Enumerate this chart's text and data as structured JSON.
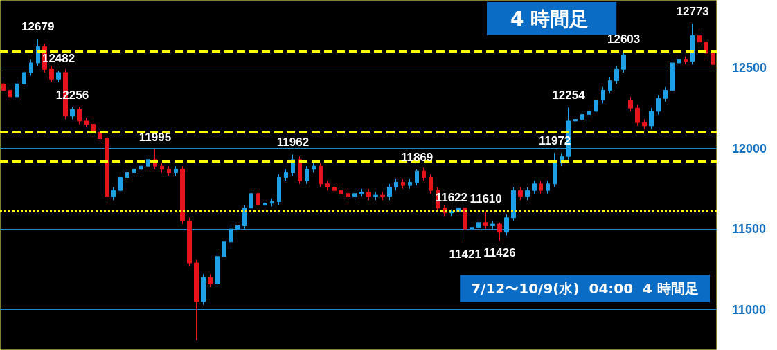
{
  "chart_data": {
    "type": "candlestick",
    "title": "4 時間足",
    "categories": [
      null,
      null,
      null,
      null,
      null,
      null,
      null,
      null,
      null,
      null,
      null,
      null,
      null,
      null,
      null,
      null,
      null,
      null,
      null,
      null,
      null,
      null,
      null,
      null,
      null,
      null,
      null,
      null,
      null,
      null,
      null,
      null,
      null,
      null,
      null,
      null,
      null,
      null,
      null,
      null,
      null,
      null,
      null,
      null,
      null,
      null,
      null,
      null,
      null,
      null,
      null,
      null,
      null,
      null,
      null,
      null,
      null,
      null,
      null,
      null,
      null,
      null,
      null,
      null,
      null,
      null,
      null,
      null,
      null,
      null,
      null,
      null,
      null,
      null,
      null,
      null,
      null,
      null,
      null,
      null,
      null,
      null,
      null,
      null,
      null,
      null,
      null,
      null,
      null,
      null,
      null,
      null,
      null,
      null,
      null,
      null,
      null,
      null,
      null,
      null,
      null,
      null,
      null,
      null
    ],
    "ohlc": [
      [
        12400,
        12420,
        12340,
        12360
      ],
      [
        12360,
        12380,
        12300,
        12320
      ],
      [
        12320,
        12420,
        12300,
        12400
      ],
      [
        12400,
        12490,
        12380,
        12470
      ],
      [
        12470,
        12550,
        12450,
        12530
      ],
      [
        12530,
        12679,
        12510,
        12630
      ],
      [
        12630,
        12650,
        12470,
        12490
      ],
      [
        12490,
        12510,
        12410,
        12430
      ],
      [
        12430,
        12482,
        12410,
        12470
      ],
      [
        12470,
        12490,
        12180,
        12200
      ],
      [
        12200,
        12256,
        12180,
        12240
      ],
      [
        12240,
        12260,
        12150,
        12170
      ],
      [
        12170,
        12190,
        12130,
        12150
      ],
      [
        12150,
        12170,
        12080,
        12100
      ],
      [
        12100,
        12120,
        12040,
        12060
      ],
      [
        12060,
        12080,
        11680,
        11700
      ],
      [
        11700,
        11760,
        11680,
        11740
      ],
      [
        11740,
        11840,
        11720,
        11820
      ],
      [
        11820,
        11870,
        11800,
        11850
      ],
      [
        11850,
        11890,
        11830,
        11870
      ],
      [
        11870,
        11910,
        11850,
        11890
      ],
      [
        11890,
        11950,
        11870,
        11930
      ],
      [
        11930,
        11995,
        11870,
        11890
      ],
      [
        11890,
        11910,
        11850,
        11870
      ],
      [
        11870,
        11890,
        11830,
        11850
      ],
      [
        11850,
        11890,
        11830,
        11870
      ],
      [
        11870,
        11890,
        11530,
        11550
      ],
      [
        11550,
        11570,
        11270,
        11290
      ],
      [
        11290,
        11310,
        10810,
        11050
      ],
      [
        11050,
        11220,
        11030,
        11200
      ],
      [
        11200,
        11220,
        11140,
        11160
      ],
      [
        11160,
        11350,
        11140,
        11330
      ],
      [
        11330,
        11440,
        11310,
        11420
      ],
      [
        11420,
        11520,
        11400,
        11500
      ],
      [
        11500,
        11540,
        11480,
        11520
      ],
      [
        11520,
        11650,
        11500,
        11630
      ],
      [
        11630,
        11740,
        11610,
        11720
      ],
      [
        11720,
        11740,
        11630,
        11650
      ],
      [
        11650,
        11670,
        11630,
        11660
      ],
      [
        11660,
        11690,
        11640,
        11670
      ],
      [
        11670,
        11840,
        11650,
        11820
      ],
      [
        11820,
        11870,
        11800,
        11850
      ],
      [
        11850,
        11962,
        11830,
        11930
      ],
      [
        11930,
        11950,
        11780,
        11800
      ],
      [
        11800,
        11890,
        11780,
        11870
      ],
      [
        11870,
        11910,
        11850,
        11890
      ],
      [
        11890,
        11910,
        11760,
        11780
      ],
      [
        11780,
        11800,
        11740,
        11760
      ],
      [
        11760,
        11780,
        11720,
        11740
      ],
      [
        11740,
        11760,
        11700,
        11720
      ],
      [
        11720,
        11740,
        11680,
        11700
      ],
      [
        11700,
        11740,
        11680,
        11720
      ],
      [
        11720,
        11750,
        11700,
        11730
      ],
      [
        11730,
        11750,
        11680,
        11700
      ],
      [
        11700,
        11730,
        11680,
        11710
      ],
      [
        11710,
        11730,
        11680,
        11700
      ],
      [
        11700,
        11780,
        11680,
        11760
      ],
      [
        11760,
        11810,
        11740,
        11790
      ],
      [
        11790,
        11810,
        11750,
        11770
      ],
      [
        11770,
        11810,
        11750,
        11790
      ],
      [
        11790,
        11869,
        11770,
        11860
      ],
      [
        11860,
        11880,
        11800,
        11820
      ],
      [
        11820,
        11840,
        11720,
        11740
      ],
      [
        11740,
        11760,
        11610,
        11630
      ],
      [
        11630,
        11650,
        11580,
        11600
      ],
      [
        11600,
        11622,
        11580,
        11610
      ],
      [
        11610,
        11650,
        11590,
        11630
      ],
      [
        11630,
        11650,
        11421,
        11500
      ],
      [
        11500,
        11530,
        11480,
        11510
      ],
      [
        11510,
        11560,
        11490,
        11540
      ],
      [
        11540,
        11610,
        11500,
        11520
      ],
      [
        11520,
        11550,
        11500,
        11530
      ],
      [
        11530,
        11540,
        11426,
        11480
      ],
      [
        11480,
        11590,
        11460,
        11570
      ],
      [
        11570,
        11760,
        11550,
        11740
      ],
      [
        11740,
        11760,
        11680,
        11700
      ],
      [
        11700,
        11760,
        11680,
        11740
      ],
      [
        11740,
        11800,
        11720,
        11780
      ],
      [
        11780,
        11800,
        11720,
        11740
      ],
      [
        11740,
        11800,
        11720,
        11780
      ],
      [
        11780,
        11972,
        11760,
        11910
      ],
      [
        11910,
        11970,
        11890,
        11950
      ],
      [
        11950,
        12254,
        11930,
        12170
      ],
      [
        12170,
        12200,
        12150,
        12180
      ],
      [
        12180,
        12230,
        12160,
        12210
      ],
      [
        12210,
        12250,
        12190,
        12230
      ],
      [
        12230,
        12320,
        12210,
        12300
      ],
      [
        12300,
        12380,
        12280,
        12360
      ],
      [
        12360,
        12440,
        12340,
        12420
      ],
      [
        12420,
        12510,
        12400,
        12490
      ],
      [
        12490,
        12603,
        12470,
        12580
      ],
      [
        12300,
        12320,
        12230,
        12250
      ],
      [
        12250,
        12270,
        12140,
        12160
      ],
      [
        12160,
        12180,
        12120,
        12140
      ],
      [
        12140,
        12250,
        12120,
        12230
      ],
      [
        12230,
        12330,
        12210,
        12310
      ],
      [
        12310,
        12380,
        12290,
        12360
      ],
      [
        12360,
        12550,
        12340,
        12530
      ],
      [
        12530,
        12570,
        12510,
        12550
      ],
      [
        12550,
        12570,
        12520,
        12540
      ],
      [
        12540,
        12773,
        12520,
        12700
      ],
      [
        12700,
        12720,
        12640,
        12660
      ],
      [
        12660,
        12680,
        12570,
        12590
      ],
      [
        12590,
        12610,
        12500,
        12520
      ]
    ],
    "colors": [
      "#e8141b",
      "#e8141b",
      "#1ea0e6",
      "#1ea0e6",
      "#1ea0e6",
      "#1ea0e6",
      "#e8141b",
      "#e8141b",
      "#1ea0e6",
      "#e8141b",
      "#1ea0e6",
      "#e8141b",
      "#e8141b",
      "#e8141b",
      "#e8141b",
      "#e8141b",
      "#1ea0e6",
      "#1ea0e6",
      "#1ea0e6",
      "#1ea0e6",
      "#1ea0e6",
      "#1ea0e6",
      "#e8141b",
      "#e8141b",
      "#e8141b",
      "#1ea0e6",
      "#e8141b",
      "#e8141b",
      "#e8141b",
      "#1ea0e6",
      "#e8141b",
      "#1ea0e6",
      "#1ea0e6",
      "#1ea0e6",
      "#1ea0e6",
      "#1ea0e6",
      "#1ea0e6",
      "#e8141b",
      "#1ea0e6",
      "#1ea0e6",
      "#1ea0e6",
      "#1ea0e6",
      "#1ea0e6",
      "#e8141b",
      "#1ea0e6",
      "#1ea0e6",
      "#e8141b",
      "#e8141b",
      "#e8141b",
      "#e8141b",
      "#e8141b",
      "#1ea0e6",
      "#1ea0e6",
      "#e8141b",
      "#1ea0e6",
      "#e8141b",
      "#1ea0e6",
      "#1ea0e6",
      "#e8141b",
      "#1ea0e6",
      "#1ea0e6",
      "#e8141b",
      "#e8141b",
      "#e8141b",
      "#e8141b",
      "#1ea0e6",
      "#1ea0e6",
      "#e8141b",
      "#1ea0e6",
      "#1ea0e6",
      "#e8141b",
      "#1ea0e6",
      "#e8141b",
      "#1ea0e6",
      "#1ea0e6",
      "#e8141b",
      "#1ea0e6",
      "#1ea0e6",
      "#e8141b",
      "#1ea0e6",
      "#1ea0e6",
      "#1ea0e6",
      "#1ea0e6",
      "#1ea0e6",
      "#1ea0e6",
      "#1ea0e6",
      "#1ea0e6",
      "#1ea0e6",
      "#1ea0e6",
      "#1ea0e6",
      "#1ea0e6",
      "#e8141b",
      "#e8141b",
      "#e8141b",
      "#1ea0e6",
      "#1ea0e6",
      "#1ea0e6",
      "#1ea0e6",
      "#1ea0e6",
      "#e8141b",
      "#1ea0e6",
      "#e8141b",
      "#e8141b",
      "#e8141b"
    ],
    "ylim": [
      10750,
      12920
    ],
    "yticks": [
      11000,
      11500,
      12000,
      12500
    ],
    "grid": "y",
    "tick_labels": "y",
    "ref_lines": [
      {
        "axis": "y",
        "value": 12600,
        "color": "#ffff00",
        "line_style": "dashed"
      },
      {
        "axis": "y",
        "value": 12100,
        "color": "#ffff00",
        "line_style": "dashed"
      },
      {
        "axis": "y",
        "value": 11920,
        "color": "#ffff00",
        "line_style": "dashed"
      },
      {
        "axis": "y",
        "value": 11610,
        "color": "#ffff00",
        "line_style": "dotted"
      }
    ],
    "annotations": [
      {
        "text": "12679",
        "y": 12679
      },
      {
        "text": "12482",
        "y": 12482
      },
      {
        "text": "12256",
        "y": 12256
      },
      {
        "text": "11995",
        "y": 11995
      },
      {
        "text": "11962",
        "y": 11962
      },
      {
        "text": "11869",
        "y": 11869
      },
      {
        "text": "11622",
        "y": 11622
      },
      {
        "text": "11610",
        "y": 11610
      },
      {
        "text": "11421",
        "y": 11421
      },
      {
        "text": "11426",
        "y": 11426
      },
      {
        "text": "11972",
        "y": 11972
      },
      {
        "text": "12254",
        "y": 12254
      },
      {
        "text": "12603",
        "y": 12603
      },
      {
        "text": "12773",
        "y": 12773
      },
      "7/12〜10/9(水)  04:00  4 時間足"
    ]
  }
}
